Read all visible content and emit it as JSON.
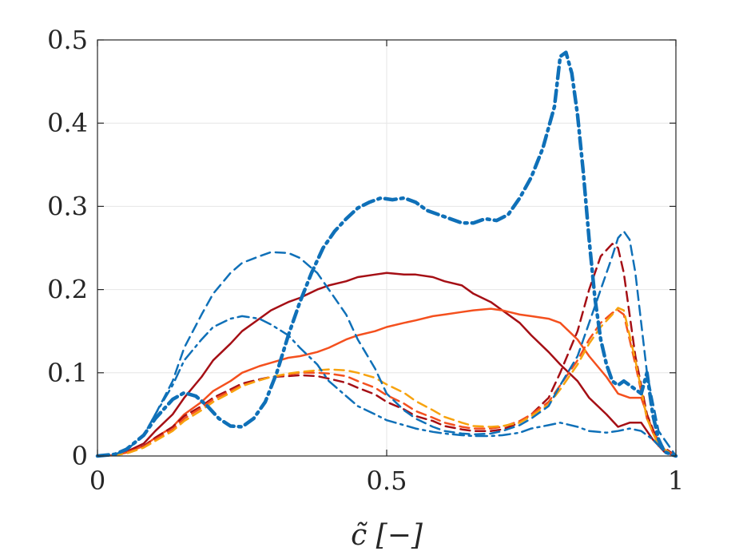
{
  "chart_data": {
    "type": "line",
    "title": "",
    "xlabel": "c̃ [−]",
    "ylabel": "",
    "xlim": [
      0,
      1
    ],
    "ylim": [
      0,
      0.5
    ],
    "x_ticks": [
      0,
      0.5,
      1
    ],
    "x_tick_labels": [
      "0",
      "0.5",
      "1"
    ],
    "y_ticks": [
      0,
      0.1,
      0.2,
      0.3,
      0.4,
      0.5
    ],
    "y_tick_labels": [
      "0",
      "0.1",
      "0.2",
      "0.3",
      "0.4",
      "0.5"
    ],
    "grid": true,
    "legend": "none",
    "series": [
      {
        "color": "#a50f15",
        "style": "solid",
        "width": 2.5,
        "x": [
          0,
          0.03,
          0.05,
          0.08,
          0.1,
          0.13,
          0.15,
          0.18,
          0.2,
          0.23,
          0.25,
          0.28,
          0.3,
          0.33,
          0.35,
          0.38,
          0.4,
          0.43,
          0.45,
          0.48,
          0.5,
          0.53,
          0.55,
          0.58,
          0.6,
          0.63,
          0.65,
          0.68,
          0.7,
          0.73,
          0.75,
          0.78,
          0.8,
          0.83,
          0.85,
          0.88,
          0.9,
          0.92,
          0.94,
          0.96,
          0.98,
          1
        ],
        "y": [
          0,
          0.001,
          0.005,
          0.015,
          0.03,
          0.05,
          0.07,
          0.095,
          0.115,
          0.135,
          0.15,
          0.165,
          0.175,
          0.185,
          0.19,
          0.2,
          0.205,
          0.21,
          0.215,
          0.218,
          0.22,
          0.218,
          0.218,
          0.215,
          0.21,
          0.205,
          0.195,
          0.185,
          0.175,
          0.16,
          0.145,
          0.125,
          0.11,
          0.09,
          0.07,
          0.05,
          0.035,
          0.04,
          0.04,
          0.02,
          0.005,
          0
        ]
      },
      {
        "color": "#f4501e",
        "style": "solid",
        "width": 2.5,
        "x": [
          0,
          0.03,
          0.05,
          0.08,
          0.1,
          0.13,
          0.15,
          0.18,
          0.2,
          0.23,
          0.25,
          0.28,
          0.3,
          0.33,
          0.35,
          0.38,
          0.4,
          0.43,
          0.45,
          0.48,
          0.5,
          0.53,
          0.55,
          0.58,
          0.6,
          0.63,
          0.65,
          0.68,
          0.7,
          0.73,
          0.75,
          0.78,
          0.8,
          0.83,
          0.85,
          0.88,
          0.9,
          0.92,
          0.94,
          0.96,
          0.98,
          1
        ],
        "y": [
          0,
          0.001,
          0.004,
          0.012,
          0.022,
          0.035,
          0.05,
          0.065,
          0.078,
          0.09,
          0.1,
          0.108,
          0.112,
          0.118,
          0.12,
          0.125,
          0.13,
          0.14,
          0.145,
          0.15,
          0.155,
          0.16,
          0.163,
          0.168,
          0.17,
          0.173,
          0.175,
          0.177,
          0.175,
          0.17,
          0.168,
          0.165,
          0.16,
          0.14,
          0.12,
          0.095,
          0.075,
          0.07,
          0.07,
          0.03,
          0.008,
          0
        ]
      },
      {
        "color": "#a50f15",
        "style": "dashed",
        "width": 2.5,
        "x": [
          0,
          0.03,
          0.05,
          0.08,
          0.1,
          0.13,
          0.15,
          0.18,
          0.2,
          0.23,
          0.25,
          0.28,
          0.3,
          0.33,
          0.35,
          0.38,
          0.4,
          0.43,
          0.45,
          0.48,
          0.5,
          0.53,
          0.55,
          0.58,
          0.6,
          0.63,
          0.65,
          0.68,
          0.7,
          0.73,
          0.75,
          0.78,
          0.8,
          0.83,
          0.85,
          0.87,
          0.89,
          0.9,
          0.91,
          0.93,
          0.95,
          0.97,
          1
        ],
        "y": [
          0,
          0.001,
          0.004,
          0.012,
          0.022,
          0.035,
          0.048,
          0.06,
          0.07,
          0.08,
          0.087,
          0.092,
          0.095,
          0.096,
          0.097,
          0.096,
          0.093,
          0.088,
          0.082,
          0.074,
          0.065,
          0.056,
          0.048,
          0.042,
          0.036,
          0.032,
          0.03,
          0.03,
          0.032,
          0.04,
          0.05,
          0.07,
          0.1,
          0.15,
          0.2,
          0.24,
          0.255,
          0.25,
          0.22,
          0.12,
          0.05,
          0.015,
          0
        ]
      },
      {
        "color": "#f4501e",
        "style": "dashed",
        "width": 2.5,
        "x": [
          0,
          0.03,
          0.05,
          0.08,
          0.1,
          0.13,
          0.15,
          0.18,
          0.2,
          0.23,
          0.25,
          0.28,
          0.3,
          0.33,
          0.35,
          0.38,
          0.4,
          0.43,
          0.45,
          0.48,
          0.5,
          0.53,
          0.55,
          0.58,
          0.6,
          0.63,
          0.65,
          0.68,
          0.7,
          0.73,
          0.75,
          0.78,
          0.8,
          0.83,
          0.85,
          0.87,
          0.89,
          0.9,
          0.91,
          0.93,
          0.95,
          0.97,
          1
        ],
        "y": [
          0,
          0.001,
          0.004,
          0.011,
          0.02,
          0.032,
          0.045,
          0.058,
          0.068,
          0.078,
          0.085,
          0.091,
          0.095,
          0.098,
          0.1,
          0.1,
          0.099,
          0.096,
          0.09,
          0.082,
          0.073,
          0.063,
          0.054,
          0.046,
          0.04,
          0.035,
          0.033,
          0.033,
          0.035,
          0.042,
          0.05,
          0.065,
          0.085,
          0.115,
          0.14,
          0.16,
          0.172,
          0.175,
          0.17,
          0.11,
          0.045,
          0.012,
          0
        ]
      },
      {
        "color": "#f7a30f",
        "style": "dashed",
        "width": 2.5,
        "x": [
          0,
          0.03,
          0.05,
          0.08,
          0.1,
          0.13,
          0.15,
          0.18,
          0.2,
          0.23,
          0.25,
          0.28,
          0.3,
          0.33,
          0.35,
          0.38,
          0.4,
          0.43,
          0.45,
          0.48,
          0.5,
          0.53,
          0.55,
          0.58,
          0.6,
          0.63,
          0.65,
          0.68,
          0.7,
          0.73,
          0.75,
          0.78,
          0.8,
          0.83,
          0.85,
          0.87,
          0.89,
          0.9,
          0.91,
          0.93,
          0.95,
          0.97,
          1
        ],
        "y": [
          0,
          0.001,
          0.003,
          0.01,
          0.018,
          0.03,
          0.042,
          0.055,
          0.065,
          0.076,
          0.084,
          0.091,
          0.095,
          0.099,
          0.101,
          0.103,
          0.104,
          0.103,
          0.1,
          0.094,
          0.086,
          0.076,
          0.066,
          0.055,
          0.047,
          0.04,
          0.036,
          0.035,
          0.036,
          0.04,
          0.048,
          0.062,
          0.08,
          0.11,
          0.135,
          0.155,
          0.17,
          0.178,
          0.175,
          0.115,
          0.045,
          0.012,
          0
        ]
      },
      {
        "color": "#0f70b8",
        "style": "dashdot",
        "width": 4.5,
        "x": [
          0,
          0.03,
          0.05,
          0.08,
          0.1,
          0.13,
          0.15,
          0.17,
          0.19,
          0.21,
          0.23,
          0.25,
          0.27,
          0.29,
          0.31,
          0.33,
          0.35,
          0.37,
          0.39,
          0.41,
          0.43,
          0.45,
          0.47,
          0.49,
          0.51,
          0.53,
          0.55,
          0.57,
          0.59,
          0.61,
          0.63,
          0.65,
          0.67,
          0.69,
          0.71,
          0.73,
          0.75,
          0.77,
          0.79,
          0.8,
          0.81,
          0.82,
          0.83,
          0.84,
          0.85,
          0.86,
          0.87,
          0.88,
          0.89,
          0.9,
          0.91,
          0.92,
          0.93,
          0.94,
          0.95,
          0.96,
          0.97,
          0.98,
          1
        ],
        "y": [
          0,
          0.002,
          0.008,
          0.025,
          0.045,
          0.068,
          0.076,
          0.072,
          0.06,
          0.045,
          0.036,
          0.035,
          0.045,
          0.065,
          0.1,
          0.145,
          0.185,
          0.22,
          0.25,
          0.27,
          0.285,
          0.298,
          0.305,
          0.31,
          0.308,
          0.31,
          0.305,
          0.295,
          0.29,
          0.285,
          0.28,
          0.28,
          0.285,
          0.283,
          0.29,
          0.31,
          0.335,
          0.37,
          0.42,
          0.48,
          0.485,
          0.46,
          0.41,
          0.34,
          0.26,
          0.19,
          0.14,
          0.11,
          0.09,
          0.085,
          0.09,
          0.085,
          0.08,
          0.075,
          0.1,
          0.05,
          0.02,
          0.005,
          0
        ]
      },
      {
        "color": "#0f70b8",
        "style": "dashed",
        "width": 2.5,
        "x": [
          0,
          0.03,
          0.05,
          0.08,
          0.1,
          0.13,
          0.15,
          0.18,
          0.2,
          0.23,
          0.25,
          0.28,
          0.3,
          0.33,
          0.35,
          0.38,
          0.4,
          0.43,
          0.45,
          0.48,
          0.5,
          0.53,
          0.55,
          0.58,
          0.6,
          0.63,
          0.65,
          0.68,
          0.7,
          0.73,
          0.75,
          0.78,
          0.8,
          0.83,
          0.85,
          0.87,
          0.89,
          0.9,
          0.91,
          0.92,
          0.93,
          0.95,
          0.97,
          1
        ],
        "y": [
          0,
          0.002,
          0.007,
          0.025,
          0.05,
          0.09,
          0.13,
          0.17,
          0.195,
          0.22,
          0.232,
          0.24,
          0.245,
          0.244,
          0.238,
          0.22,
          0.2,
          0.17,
          0.14,
          0.105,
          0.075,
          0.055,
          0.045,
          0.035,
          0.03,
          0.027,
          0.026,
          0.027,
          0.03,
          0.037,
          0.045,
          0.06,
          0.085,
          0.12,
          0.16,
          0.2,
          0.24,
          0.262,
          0.27,
          0.26,
          0.22,
          0.1,
          0.03,
          0
        ]
      },
      {
        "color": "#0f70b8",
        "style": "dashdot",
        "width": 2.5,
        "x": [
          0,
          0.03,
          0.05,
          0.08,
          0.1,
          0.13,
          0.15,
          0.18,
          0.2,
          0.23,
          0.25,
          0.28,
          0.3,
          0.33,
          0.35,
          0.38,
          0.4,
          0.43,
          0.45,
          0.48,
          0.5,
          0.53,
          0.55,
          0.58,
          0.6,
          0.63,
          0.65,
          0.68,
          0.7,
          0.73,
          0.75,
          0.78,
          0.8,
          0.83,
          0.85,
          0.88,
          0.9,
          0.92,
          0.94,
          0.96,
          0.98,
          1
        ],
        "y": [
          0,
          0.002,
          0.008,
          0.025,
          0.05,
          0.085,
          0.115,
          0.14,
          0.155,
          0.165,
          0.168,
          0.165,
          0.158,
          0.145,
          0.13,
          0.11,
          0.09,
          0.072,
          0.06,
          0.05,
          0.043,
          0.037,
          0.033,
          0.029,
          0.027,
          0.025,
          0.024,
          0.024,
          0.025,
          0.028,
          0.033,
          0.037,
          0.04,
          0.035,
          0.03,
          0.028,
          0.03,
          0.033,
          0.03,
          0.02,
          0.006,
          0
        ]
      }
    ]
  }
}
